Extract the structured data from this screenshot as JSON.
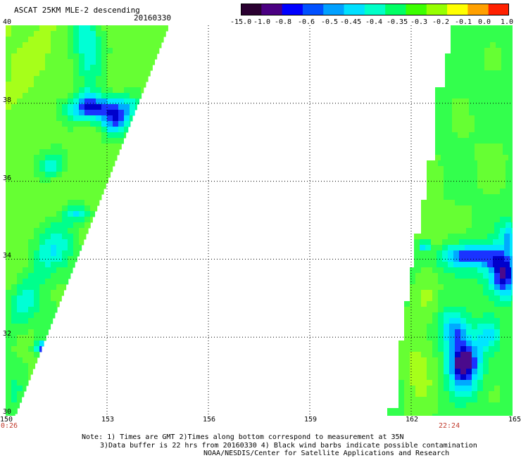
{
  "header": {
    "title": "ASCAT 25KM MLE-2 descending",
    "date": "20160330"
  },
  "colorbar": {
    "ticks": [
      "-15.0",
      "-1.0",
      "-0.8",
      "-0.6",
      "-0.5",
      "-0.45",
      "-0.4",
      "-0.35",
      "-0.3",
      "-0.2",
      "-0.1",
      "0.0",
      "1.0"
    ],
    "colors": [
      "#2a0030",
      "#4b0082",
      "#0000ff",
      "#0050ff",
      "#00a0ff",
      "#00e0ff",
      "#00ffc8",
      "#00ff64",
      "#3cff00",
      "#96ff00",
      "#ffff00",
      "#ffa000",
      "#ff2000"
    ]
  },
  "map": {
    "lon_ticks": [
      "150",
      "153",
      "156",
      "159",
      "162",
      "165"
    ],
    "lat_ticks": [
      "40",
      "38",
      "36",
      "34",
      "32",
      "30"
    ],
    "lon_range": [
      150,
      165
    ],
    "lat_range": [
      30,
      40
    ],
    "grid": true,
    "swath_times": {
      "left": "0:26",
      "right": "22:24"
    }
  },
  "notes": {
    "line1": "Note: 1) Times are GMT 2)Times along bottom correspond to measurement at 35N",
    "line2": "3)Data buffer is 22 hrs from 20160330 4) Black wind barbs indicate possible contamination",
    "line3": "NOAA/NESDIS/Center for Satellite Applications and Research"
  }
}
